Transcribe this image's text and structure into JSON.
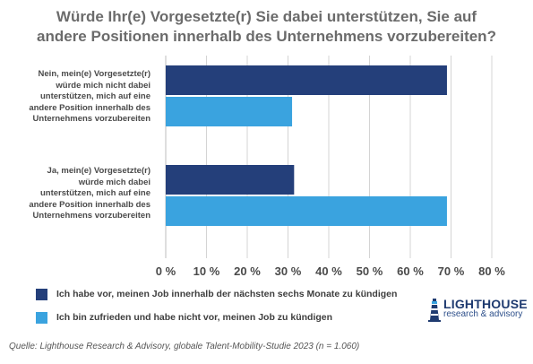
{
  "chart_data": {
    "type": "bar",
    "orientation": "horizontal",
    "title_lines": [
      "Würde Ihr(e) Vorgesetzte(r) Sie dabei unterstützen, Sie auf",
      "andere Positionen innerhalb des Unternehmens vorzubereiten?"
    ],
    "categories": [
      [
        "Nein, mein(e) Vorgesetzte(r)",
        "würde mich nicht dabei",
        "unterstützen, mich auf eine",
        "andere Position innerhalb des",
        "Unternehmens vorzubereiten"
      ],
      [
        "Ja, mein(e) Vorgesetzte(r)",
        "würde mich dabei",
        "unterstützen, mich auf eine",
        "andere Position innerhalb des",
        "Unternehmens vorzubereiten"
      ]
    ],
    "series": [
      {
        "name": "Ich habe vor, meinen Job innerhalb der nächsten sechs Monate zu kündigen",
        "color": "#243f7a",
        "values": [
          69,
          31.5
        ]
      },
      {
        "name": "Ich bin zufrieden und habe nicht vor, meinen Job zu kündigen",
        "color": "#3aa3df",
        "values": [
          31,
          69
        ]
      }
    ],
    "xlim": [
      0,
      80
    ],
    "xticks": [
      "0 %",
      "10 %",
      "20 %",
      "30 %",
      "40 %",
      "50 %",
      "60 %",
      "70 %",
      "80 %"
    ],
    "grid": true,
    "legend_position": "bottom-left"
  },
  "source": "Quelle: Lighthouse Research & Advisory, globale Talent-Mobility-Studie 2023 (n = 1.060)",
  "logo": {
    "name": "LIGHTHOUSE",
    "tagline": "research & advisory",
    "icon": "lighthouse-icon"
  }
}
